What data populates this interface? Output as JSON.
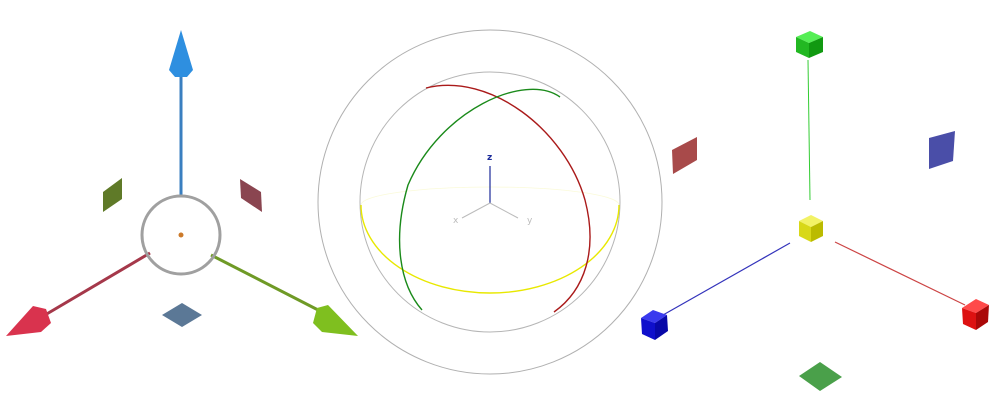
{
  "colors": {
    "x_axis_translate": "#d9334e",
    "y_axis_translate": "#7fbf1f",
    "z_axis_translate": "#2e8fe0",
    "plane_xy": "#5b7896",
    "plane_yz": "#8a4550",
    "plane_xz": "#5f7a28",
    "rotate_x": "#aa1a1a",
    "rotate_y": "#1a8a1a",
    "rotate_z": "#e8e800",
    "rotate_outer": "#aaaaaa",
    "scale_x": "#e01515",
    "scale_y": "#15d015",
    "scale_z": "#1515d8",
    "scale_center": "#e0e010",
    "scale_plane_red": "#a84040",
    "scale_plane_blue": "#4a4ea8",
    "scale_plane_green": "#4aa04a"
  },
  "rotate_gizmo": {
    "axis_labels": {
      "z": "z",
      "x": "x",
      "y": "y"
    }
  },
  "icons": {
    "translate": "translate-gizmo-icon",
    "rotate": "rotate-gizmo-icon",
    "scale": "scale-gizmo-icon"
  }
}
